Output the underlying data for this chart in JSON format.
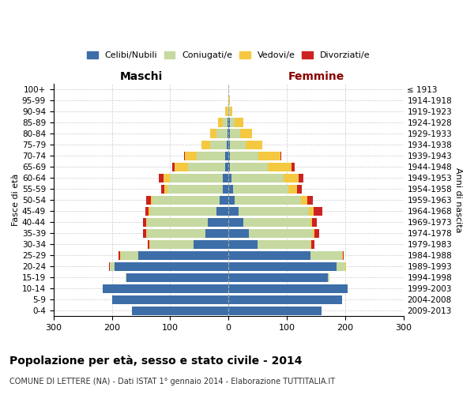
{
  "age_groups": [
    "0-4",
    "5-9",
    "10-14",
    "15-19",
    "20-24",
    "25-29",
    "30-34",
    "35-39",
    "40-44",
    "45-49",
    "50-54",
    "55-59",
    "60-64",
    "65-69",
    "70-74",
    "75-79",
    "80-84",
    "85-89",
    "90-94",
    "95-99",
    "100+"
  ],
  "birth_years": [
    "2009-2013",
    "2004-2008",
    "1999-2003",
    "1994-1998",
    "1989-1993",
    "1984-1988",
    "1979-1983",
    "1974-1978",
    "1969-1973",
    "1964-1968",
    "1959-1963",
    "1954-1958",
    "1949-1953",
    "1944-1948",
    "1939-1943",
    "1934-1938",
    "1929-1933",
    "1924-1928",
    "1919-1923",
    "1914-1918",
    "≤ 1913"
  ],
  "males": {
    "celibi": [
      165,
      200,
      215,
      175,
      195,
      155,
      60,
      40,
      35,
      20,
      15,
      10,
      10,
      5,
      5,
      3,
      2,
      2,
      0,
      0,
      0
    ],
    "coniugati": [
      0,
      0,
      0,
      2,
      8,
      30,
      75,
      100,
      105,
      115,
      115,
      95,
      90,
      65,
      50,
      28,
      18,
      8,
      2,
      0,
      0
    ],
    "vedovi": [
      0,
      0,
      0,
      0,
      1,
      1,
      1,
      1,
      1,
      2,
      3,
      5,
      12,
      22,
      20,
      15,
      12,
      8,
      3,
      0,
      0
    ],
    "divorziati": [
      0,
      0,
      0,
      0,
      1,
      2,
      3,
      5,
      5,
      5,
      8,
      6,
      8,
      5,
      1,
      0,
      0,
      0,
      0,
      0,
      0
    ]
  },
  "females": {
    "nubili": [
      160,
      195,
      205,
      170,
      185,
      140,
      50,
      35,
      25,
      18,
      10,
      8,
      5,
      3,
      3,
      2,
      2,
      2,
      0,
      0,
      0
    ],
    "coniugate": [
      0,
      0,
      0,
      3,
      15,
      55,
      90,
      110,
      115,
      120,
      115,
      95,
      90,
      65,
      48,
      28,
      18,
      8,
      2,
      0,
      0
    ],
    "vedove": [
      0,
      0,
      0,
      0,
      1,
      1,
      2,
      2,
      4,
      8,
      10,
      15,
      25,
      40,
      38,
      28,
      20,
      15,
      5,
      2,
      0
    ],
    "divorziate": [
      0,
      0,
      0,
      0,
      1,
      2,
      5,
      8,
      8,
      15,
      10,
      8,
      8,
      5,
      1,
      0,
      0,
      0,
      0,
      0,
      0
    ]
  },
  "colors": {
    "celibi": "#3d6ea8",
    "coniugati": "#c5d9a0",
    "vedovi": "#f5c842",
    "divorziati": "#cc2222"
  },
  "title": "Popolazione per età, sesso e stato civile - 2014",
  "subtitle": "COMUNE DI LETTERE (NA) - Dati ISTAT 1° gennaio 2014 - Elaborazione TUTTITALIA.IT",
  "label_maschi": "Maschi",
  "label_femmine": "Femmine",
  "ylabel_left": "Fasce di età",
  "ylabel_right": "Anni di nascita",
  "xlim": 300,
  "legend_labels": [
    "Celibi/Nubili",
    "Coniugati/e",
    "Vedovi/e",
    "Divorziati/e"
  ]
}
